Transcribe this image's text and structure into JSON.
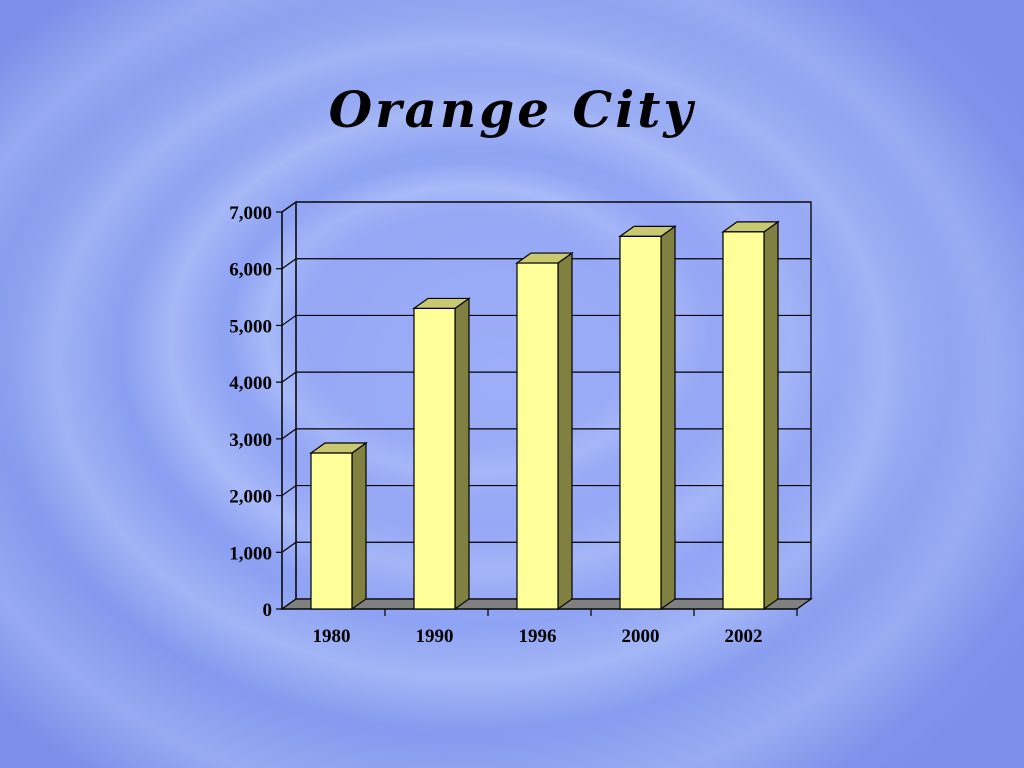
{
  "chart_data": {
    "type": "bar",
    "title": "Orange City",
    "categories": [
      "1980",
      "1990",
      "1996",
      "2000",
      "2002"
    ],
    "values": [
      2750,
      5300,
      6100,
      6570,
      6650
    ],
    "ylim": [
      0,
      7000
    ],
    "yticks": [
      "0",
      "1,000",
      "2,000",
      "3,000",
      "4,000",
      "5,000",
      "6,000",
      "7,000"
    ],
    "xlabel": "",
    "ylabel": "",
    "grid": true,
    "legend": "none",
    "colors": {
      "bar_front": "#ffff99",
      "bar_side": "#808040",
      "bar_top": "#c8c870",
      "floor": "#808080",
      "plot_bg": "#9aaaf6"
    }
  }
}
